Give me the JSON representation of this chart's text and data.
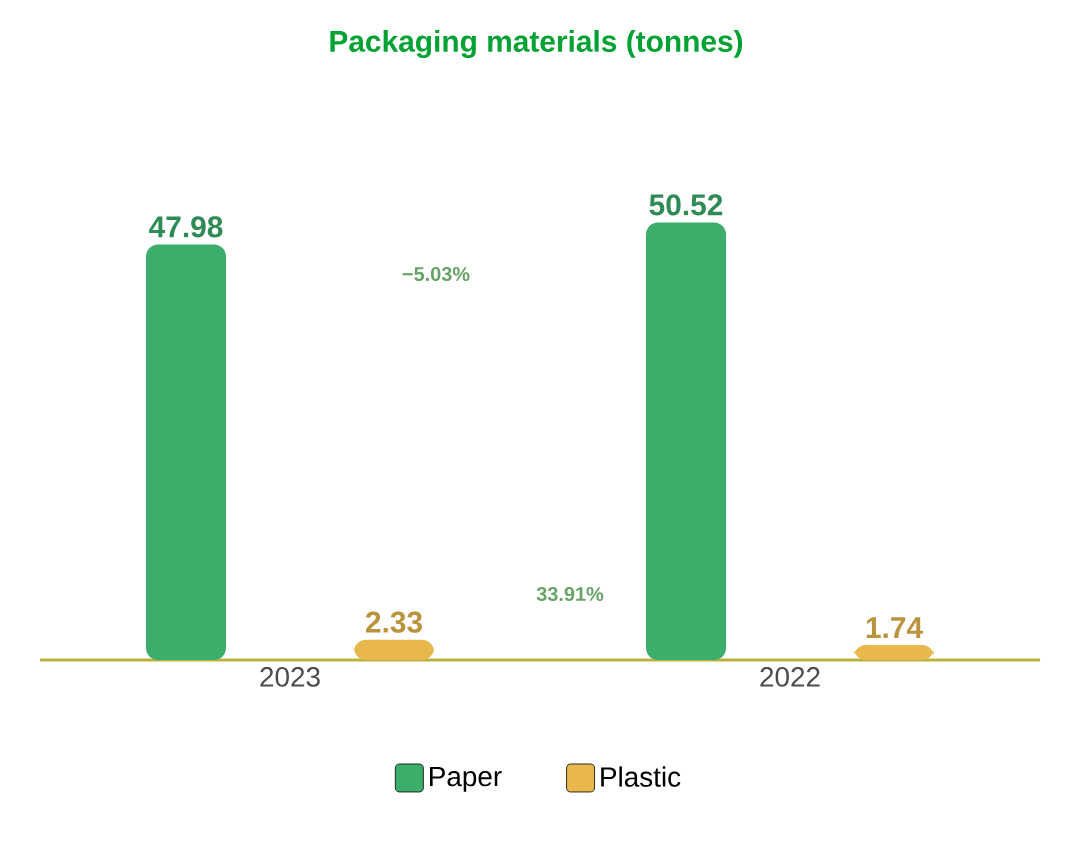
{
  "chart_data": {
    "type": "bar",
    "title": "Packaging materials (tonnes)",
    "categories": [
      "2023",
      "2022"
    ],
    "series": [
      {
        "name": "Paper",
        "color": "#3aae6a",
        "values": [
          47.98,
          50.52
        ]
      },
      {
        "name": "Plastic",
        "color": "#e8b84c",
        "values": [
          2.33,
          1.74
        ]
      }
    ],
    "data_labels": true,
    "legend": "bottom",
    "annotations": [
      "−5.03%",
      "33.91%"
    ]
  }
}
